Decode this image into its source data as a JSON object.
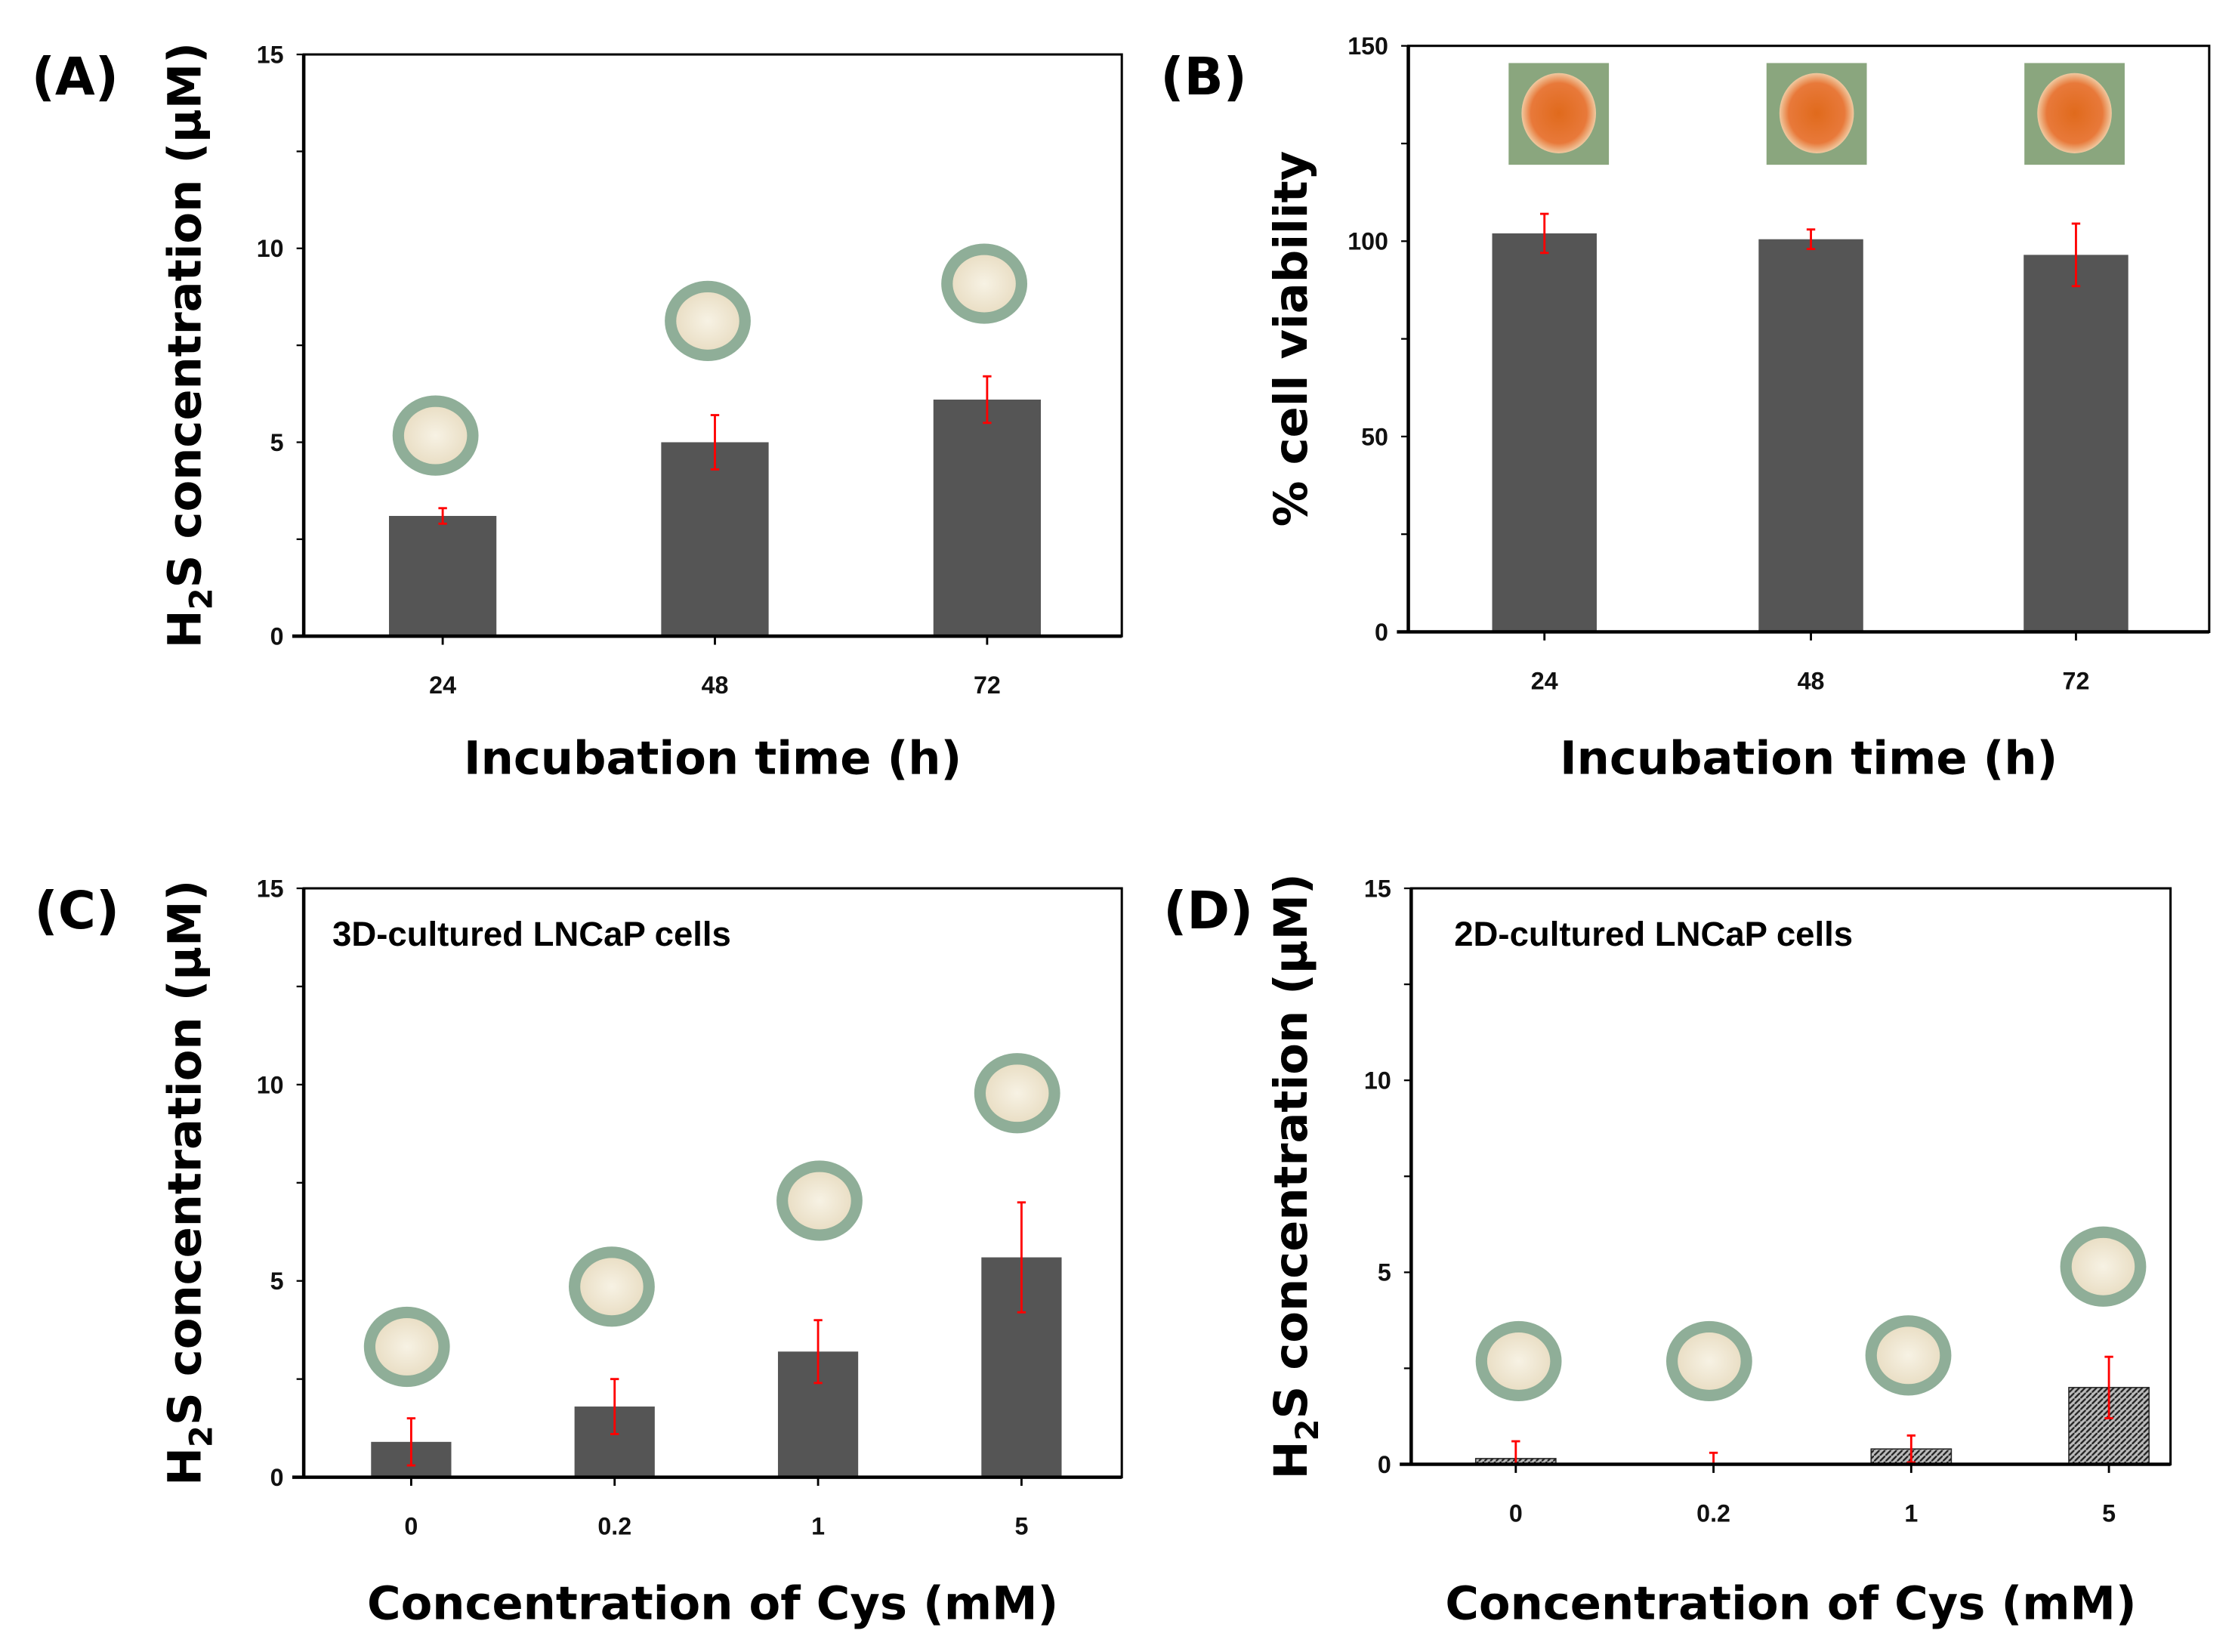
{
  "colors": {
    "bar": "#555555",
    "error": "#ff0000",
    "axis": "#000000"
  },
  "chart_data": [
    {
      "panel": "(A)",
      "type": "bar",
      "categories": [
        "24",
        "48",
        "72"
      ],
      "values": [
        3.1,
        5.0,
        6.1
      ],
      "errors": [
        0.2,
        0.7,
        0.6
      ],
      "xlabel": "Incubation time (h)",
      "ylabel": "H2S concentration (µM)",
      "ylabel_parts": [
        "H",
        "2",
        "S concentration (µM)"
      ],
      "ylim": [
        0,
        15
      ],
      "yticks": [
        "0",
        "5",
        "10",
        "15"
      ],
      "ytick_values": [
        0,
        5,
        10,
        15
      ],
      "minor_step": 2.5,
      "annotation": "",
      "fill": "solid"
    },
    {
      "panel": "(B)",
      "type": "bar",
      "categories": [
        "24",
        "48",
        "72"
      ],
      "values": [
        102,
        100.5,
        96.5
      ],
      "errors": [
        5,
        2.5,
        8
      ],
      "xlabel": "Incubation time (h)",
      "ylabel": "% cell viability",
      "ylabel_parts": [
        "% cell viability",
        "",
        ""
      ],
      "ylim": [
        0,
        150
      ],
      "yticks": [
        "0",
        "50",
        "100",
        "150"
      ],
      "ytick_values": [
        0,
        50,
        100,
        150
      ],
      "minor_step": 25,
      "annotation": "",
      "fill": "solid"
    },
    {
      "panel": "(C)",
      "type": "bar",
      "categories": [
        "0",
        "0.2",
        "1",
        "5"
      ],
      "values": [
        0.9,
        1.8,
        3.2,
        5.6
      ],
      "errors": [
        0.6,
        0.7,
        0.8,
        1.4
      ],
      "xlabel": "Concentration of Cys (mM)",
      "ylabel": "H2S concentration (µM)",
      "ylabel_parts": [
        "H",
        "2",
        "S concentration (µM)"
      ],
      "ylim": [
        0,
        15
      ],
      "yticks": [
        "0",
        "5",
        "10",
        "15"
      ],
      "ytick_values": [
        0,
        5,
        10,
        15
      ],
      "minor_step": 2.5,
      "annotation": "3D-cultured LNCaP cells",
      "fill": "solid"
    },
    {
      "panel": "(D)",
      "type": "bar",
      "categories": [
        "0",
        "0.2",
        "1",
        "5"
      ],
      "values": [
        0.15,
        0,
        0.4,
        2.0
      ],
      "errors": [
        0.45,
        0.3,
        0.35,
        0.8
      ],
      "xlabel": "Concentration of Cys (mM)",
      "ylabel": "H2S concentration (µM)",
      "ylabel_parts": [
        "H",
        "2",
        "S concentration (µM)"
      ],
      "ylim": [
        0,
        15
      ],
      "yticks": [
        "0",
        "5",
        "10",
        "15"
      ],
      "ytick_values": [
        0,
        5,
        10,
        15
      ],
      "minor_step": 2.5,
      "annotation": "2D-cultured LNCaP cells",
      "fill": "hatched"
    }
  ]
}
